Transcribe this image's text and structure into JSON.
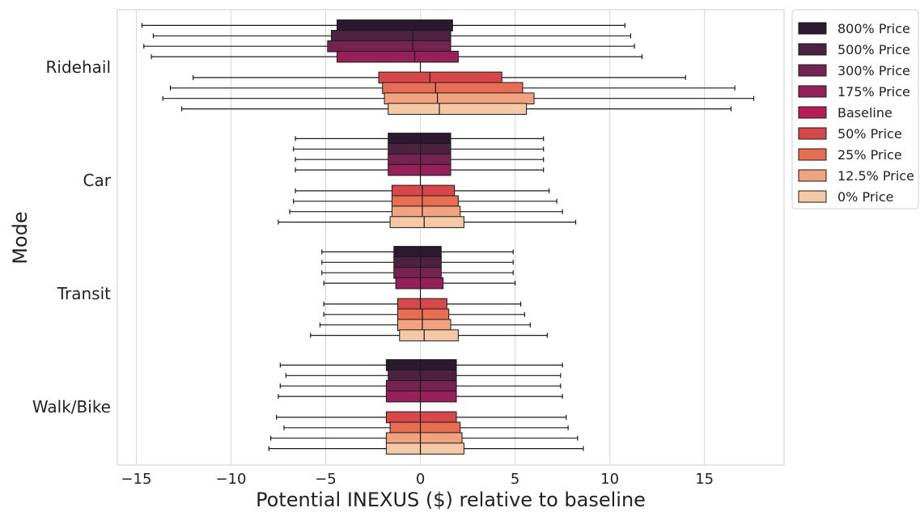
{
  "chart_data": {
    "type": "box",
    "orientation": "horizontal",
    "xlabel": "Potential INEXUS ($) relative to baseline",
    "ylabel": "Mode",
    "xlim": [
      -16,
      19.2
    ],
    "xticks": [
      -15,
      -10,
      -5,
      0,
      5,
      10,
      15
    ],
    "xtick_labels": [
      "−15",
      "−10",
      "−5",
      "0",
      "5",
      "10",
      "15"
    ],
    "grid": "vertical",
    "legend_position": "top-right",
    "categories": [
      "Ridehail",
      "Car",
      "Transit",
      "Walk/Bike"
    ],
    "series": [
      {
        "name": "800% Price",
        "color": "#2b1a2f"
      },
      {
        "name": "500% Price",
        "color": "#4d2240"
      },
      {
        "name": "300% Price",
        "color": "#752452"
      },
      {
        "name": "175% Price",
        "color": "#962059"
      },
      {
        "name": "Baseline",
        "color": "#b81e55"
      },
      {
        "name": "50% Price",
        "color": "#d8484b"
      },
      {
        "name": "25% Price",
        "color": "#e86e53"
      },
      {
        "name": "12.5% Price",
        "color": "#f0a37e"
      },
      {
        "name": "0% Price",
        "color": "#f6c9a6"
      }
    ],
    "boxes": {
      "Ridehail": [
        {
          "whislo": -14.7,
          "q1": -4.4,
          "med": -0.3,
          "q3": 1.7,
          "whishi": 10.8
        },
        {
          "whislo": -14.1,
          "q1": -4.7,
          "med": -0.4,
          "q3": 1.6,
          "whishi": 11.1
        },
        {
          "whislo": -14.6,
          "q1": -4.9,
          "med": -0.4,
          "q3": 1.6,
          "whishi": 11.3
        },
        {
          "whislo": -14.2,
          "q1": -4.4,
          "med": -0.3,
          "q3": 2.0,
          "whishi": 11.7
        },
        {
          "whislo": 0,
          "q1": 0,
          "med": 0,
          "q3": 0,
          "whishi": 0
        },
        {
          "whislo": -12.0,
          "q1": -2.2,
          "med": 0.5,
          "q3": 4.3,
          "whishi": 14.0
        },
        {
          "whislo": -13.2,
          "q1": -2.0,
          "med": 0.8,
          "q3": 5.4,
          "whishi": 16.6
        },
        {
          "whislo": -13.6,
          "q1": -1.9,
          "med": 0.9,
          "q3": 6.0,
          "whishi": 17.6
        },
        {
          "whislo": -12.6,
          "q1": -1.7,
          "med": 1.0,
          "q3": 5.6,
          "whishi": 16.4
        }
      ],
      "Car": [
        {
          "whislo": -6.6,
          "q1": -1.7,
          "med": 0.0,
          "q3": 1.6,
          "whishi": 6.5
        },
        {
          "whislo": -6.7,
          "q1": -1.7,
          "med": 0.0,
          "q3": 1.6,
          "whishi": 6.5
        },
        {
          "whislo": -6.6,
          "q1": -1.7,
          "med": 0.0,
          "q3": 1.6,
          "whishi": 6.5
        },
        {
          "whislo": -6.6,
          "q1": -1.7,
          "med": 0.0,
          "q3": 1.6,
          "whishi": 6.5
        },
        {
          "whislo": 0,
          "q1": 0,
          "med": 0,
          "q3": 0,
          "whishi": 0
        },
        {
          "whislo": -6.6,
          "q1": -1.5,
          "med": 0.1,
          "q3": 1.8,
          "whishi": 6.8
        },
        {
          "whislo": -6.7,
          "q1": -1.5,
          "med": 0.1,
          "q3": 2.0,
          "whishi": 7.2
        },
        {
          "whislo": -6.9,
          "q1": -1.5,
          "med": 0.1,
          "q3": 2.1,
          "whishi": 7.5
        },
        {
          "whislo": -7.5,
          "q1": -1.6,
          "med": 0.2,
          "q3": 2.3,
          "whishi": 8.2
        }
      ],
      "Transit": [
        {
          "whislo": -5.2,
          "q1": -1.4,
          "med": 0.0,
          "q3": 1.1,
          "whishi": 4.9
        },
        {
          "whislo": -5.2,
          "q1": -1.4,
          "med": 0.0,
          "q3": 1.1,
          "whishi": 4.9
        },
        {
          "whislo": -5.2,
          "q1": -1.4,
          "med": 0.0,
          "q3": 1.1,
          "whishi": 4.9
        },
        {
          "whislo": -5.1,
          "q1": -1.3,
          "med": 0.0,
          "q3": 1.2,
          "whishi": 5.0
        },
        {
          "whislo": 0,
          "q1": 0,
          "med": 0,
          "q3": 0,
          "whishi": 0
        },
        {
          "whislo": -5.1,
          "q1": -1.2,
          "med": 0.0,
          "q3": 1.4,
          "whishi": 5.3
        },
        {
          "whislo": -5.1,
          "q1": -1.2,
          "med": 0.1,
          "q3": 1.5,
          "whishi": 5.5
        },
        {
          "whislo": -5.3,
          "q1": -1.2,
          "med": 0.1,
          "q3": 1.6,
          "whishi": 5.8
        },
        {
          "whislo": -5.8,
          "q1": -1.1,
          "med": 0.2,
          "q3": 2.0,
          "whishi": 6.7
        }
      ],
      "Walk/Bike": [
        {
          "whislo": -7.4,
          "q1": -1.8,
          "med": 0.0,
          "q3": 1.9,
          "whishi": 7.5
        },
        {
          "whislo": -7.1,
          "q1": -1.7,
          "med": 0.0,
          "q3": 1.9,
          "whishi": 7.4
        },
        {
          "whislo": -7.4,
          "q1": -1.8,
          "med": 0.0,
          "q3": 1.9,
          "whishi": 7.4
        },
        {
          "whislo": -7.5,
          "q1": -1.8,
          "med": 0.0,
          "q3": 1.9,
          "whishi": 7.5
        },
        {
          "whislo": 0,
          "q1": 0,
          "med": 0,
          "q3": 0,
          "whishi": 0
        },
        {
          "whislo": -7.6,
          "q1": -1.8,
          "med": 0.0,
          "q3": 1.9,
          "whishi": 7.7
        },
        {
          "whislo": -7.2,
          "q1": -1.6,
          "med": 0.0,
          "q3": 2.1,
          "whishi": 7.8
        },
        {
          "whislo": -7.9,
          "q1": -1.8,
          "med": 0.0,
          "q3": 2.2,
          "whishi": 8.3
        },
        {
          "whislo": -8.0,
          "q1": -1.8,
          "med": 0.0,
          "q3": 2.3,
          "whishi": 8.6
        }
      ]
    }
  }
}
